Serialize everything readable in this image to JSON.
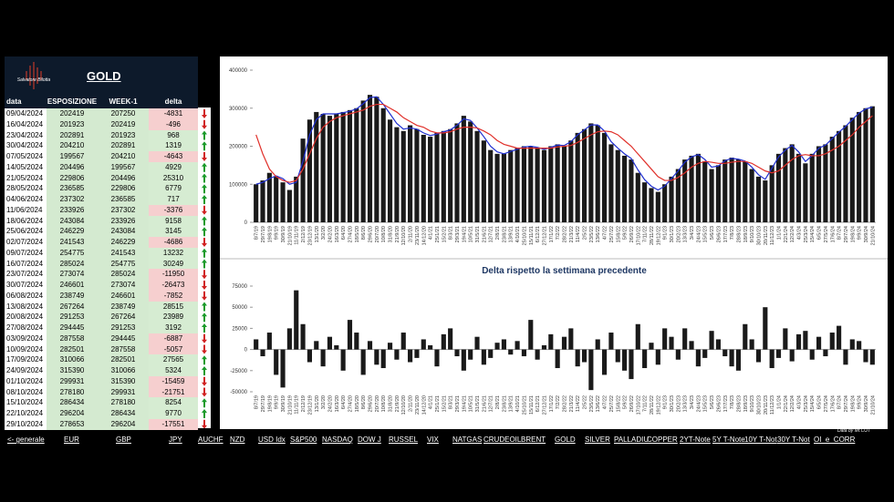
{
  "panel": {
    "logo": "Salvatore Bilotta",
    "title": "GOLD"
  },
  "table": {
    "header": [
      "data",
      "ESPOSIZIONE LS",
      "WEEK-1",
      "delta"
    ],
    "rows": [
      [
        "09/04/2024",
        202419,
        207250,
        -4831
      ],
      [
        "16/04/2024",
        201923,
        202419,
        -496
      ],
      [
        "23/04/2024",
        202891,
        201923,
        968
      ],
      [
        "30/04/2024",
        204210,
        202891,
        1319
      ],
      [
        "07/05/2024",
        199567,
        204210,
        -4643
      ],
      [
        "14/05/2024",
        204496,
        199567,
        4929
      ],
      [
        "21/05/2024",
        229806,
        204496,
        25310
      ],
      [
        "28/05/2024",
        236585,
        229806,
        6779
      ],
      [
        "04/06/2024",
        237302,
        236585,
        717
      ],
      [
        "11/06/2024",
        233926,
        237302,
        -3376
      ],
      [
        "18/06/2024",
        243084,
        233926,
        9158
      ],
      [
        "25/06/2024",
        246229,
        243084,
        3145
      ],
      [
        "02/07/2024",
        241543,
        246229,
        -4686
      ],
      [
        "09/07/2024",
        254775,
        241543,
        13232
      ],
      [
        "16/07/2024",
        285024,
        254775,
        30249
      ],
      [
        "23/07/2024",
        273074,
        285024,
        -11950
      ],
      [
        "30/07/2024",
        246601,
        273074,
        -26473
      ],
      [
        "06/08/2024",
        238749,
        246601,
        -7852
      ],
      [
        "13/08/2024",
        267264,
        238749,
        28515
      ],
      [
        "20/08/2024",
        291253,
        267264,
        23989
      ],
      [
        "27/08/2024",
        294445,
        291253,
        3192
      ],
      [
        "03/09/2024",
        287558,
        294445,
        -6887
      ],
      [
        "10/09/2024",
        282501,
        287558,
        -5057
      ],
      [
        "17/09/2024",
        310066,
        282501,
        27565
      ],
      [
        "24/09/2024",
        315390,
        310066,
        5324
      ],
      [
        "01/10/2024",
        299931,
        315390,
        -15459
      ],
      [
        "08/10/2024",
        278180,
        299931,
        -21751
      ],
      [
        "15/10/2024",
        286434,
        278180,
        8254
      ],
      [
        "22/10/2024",
        296204,
        286434,
        9770
      ],
      [
        "29/10/2024",
        278653,
        296204,
        -17551
      ]
    ]
  },
  "chart_data": [
    {
      "type": "bar",
      "ylim": [
        0,
        400000
      ],
      "yticks": [
        0,
        100000,
        200000,
        300000,
        400000
      ],
      "categories": [
        "8/7/19",
        "29/7/19",
        "19/8/19",
        "9/9/19",
        "30/9/19",
        "21/10/19",
        "11/11/19",
        "2/12/19",
        "23/12/19",
        "13/1/20",
        "3/2/20",
        "24/2/20",
        "16/3/20",
        "6/4/20",
        "27/4/20",
        "18/5/20",
        "8/6/20",
        "29/6/20",
        "20/7/20",
        "10/8/20",
        "31/8/20",
        "21/9/20",
        "12/10/20",
        "2/11/20",
        "23/11/20",
        "14/12/20",
        "4/1/21",
        "25/1/21",
        "15/2/21",
        "8/3/21",
        "29/3/21",
        "19/4/21",
        "10/5/21",
        "31/5/21",
        "21/6/21",
        "12/7/21",
        "2/8/21",
        "23/8/21",
        "13/9/21",
        "4/10/21",
        "25/10/21",
        "15/11/21",
        "6/12/21",
        "27/12/21",
        "17/1/22",
        "7/2/22",
        "28/2/22",
        "21/3/22",
        "11/4/22",
        "2/5/22",
        "23/5/22",
        "13/6/22",
        "4/7/22",
        "25/7/22",
        "15/8/22",
        "5/9/22",
        "26/9/22",
        "17/10/22",
        "7/11/22",
        "28/11/22",
        "19/12/22",
        "9/1/23",
        "30/1/23",
        "20/2/23",
        "13/3/23",
        "3/4/23",
        "24/4/23",
        "15/5/23",
        "5/6/23",
        "26/6/23",
        "17/7/23",
        "7/8/23",
        "28/8/23",
        "18/9/23",
        "9/10/23",
        "30/10/23",
        "20/11/23",
        "11/12/23",
        "1/1/24",
        "22/1/24",
        "12/2/24",
        "4/3/24",
        "25/3/24",
        "15/4/24",
        "6/5/24",
        "27/5/24",
        "17/6/24",
        "8/7/24",
        "29/7/24",
        "19/8/24",
        "9/9/24",
        "30/9/24",
        "21/10/24"
      ],
      "series": [
        {
          "type": "bar",
          "color": "#1a1a1a",
          "values": [
            100000,
            110000,
            130000,
            120000,
            105000,
            85000,
            120000,
            220000,
            270000,
            290000,
            285000,
            280000,
            285000,
            290000,
            295000,
            300000,
            320000,
            335000,
            330000,
            300000,
            270000,
            250000,
            240000,
            255000,
            245000,
            230000,
            225000,
            235000,
            240000,
            245000,
            260000,
            280000,
            265000,
            240000,
            215000,
            190000,
            180000,
            180000,
            190000,
            195000,
            200000,
            200000,
            195000,
            190000,
            200000,
            205000,
            200000,
            215000,
            235000,
            245000,
            260000,
            255000,
            235000,
            205000,
            190000,
            175000,
            165000,
            130000,
            105000,
            90000,
            80000,
            100000,
            120000,
            140000,
            165000,
            175000,
            180000,
            160000,
            140000,
            150000,
            165000,
            170000,
            165000,
            160000,
            140000,
            120000,
            110000,
            150000,
            180000,
            195000,
            205000,
            180000,
            155000,
            180000,
            200000,
            205000,
            225000,
            240000,
            255000,
            275000,
            290000,
            300000,
            305000
          ]
        },
        {
          "type": "line",
          "color": "#1f2fd0",
          "values": [
            100000,
            105000,
            115000,
            122000,
            115000,
            100000,
            105000,
            160000,
            230000,
            270000,
            285000,
            285000,
            285000,
            288000,
            292000,
            298000,
            312000,
            328000,
            330000,
            310000,
            285000,
            260000,
            245000,
            248000,
            245000,
            235000,
            228000,
            232000,
            238000,
            243000,
            255000,
            272000,
            268000,
            248000,
            225000,
            200000,
            185000,
            180000,
            186000,
            192000,
            198000,
            200000,
            197000,
            192000,
            197000,
            203000,
            202000,
            212000,
            230000,
            243000,
            256000,
            256000,
            240000,
            212000,
            195000,
            180000,
            168000,
            138000,
            112000,
            95000,
            85000,
            95000,
            115000,
            135000,
            158000,
            172000,
            178000,
            165000,
            145000,
            148000,
            162000,
            168000,
            166000,
            161000,
            145000,
            125000,
            113000,
            142000,
            172000,
            190000,
            202000,
            185000,
            160000,
            175000,
            195000,
            203000,
            220000,
            237000,
            252000,
            270000,
            287000,
            298000,
            303000
          ]
        },
        {
          "type": "line",
          "color": "#e0302a",
          "values": [
            230000,
            180000,
            140000,
            120000,
            110000,
            105000,
            110000,
            140000,
            180000,
            220000,
            250000,
            265000,
            275000,
            280000,
            285000,
            290000,
            295000,
            305000,
            310000,
            310000,
            300000,
            290000,
            275000,
            265000,
            255000,
            250000,
            240000,
            235000,
            235000,
            238000,
            245000,
            250000,
            250000,
            248000,
            240000,
            230000,
            215000,
            205000,
            200000,
            195000,
            195000,
            195000,
            195000,
            195000,
            195000,
            198000,
            200000,
            202000,
            210000,
            220000,
            230000,
            238000,
            240000,
            238000,
            230000,
            215000,
            200000,
            180000,
            160000,
            140000,
            120000,
            110000,
            110000,
            118000,
            130000,
            145000,
            155000,
            160000,
            158000,
            155000,
            155000,
            158000,
            160000,
            160000,
            155000,
            145000,
            135000,
            130000,
            135000,
            150000,
            165000,
            175000,
            178000,
            175000,
            175000,
            180000,
            190000,
            200000,
            215000,
            230000,
            250000,
            265000,
            280000
          ]
        }
      ]
    },
    {
      "type": "bar",
      "title": "Delta rispetto la settimana precedente",
      "ylim": [
        -50000,
        75000
      ],
      "yticks": [
        -50000,
        -25000,
        0,
        25000,
        50000,
        75000
      ],
      "categories": [
        "8/7/19",
        "29/7/19",
        "19/8/19",
        "9/9/19",
        "30/9/19",
        "21/10/19",
        "11/11/19",
        "2/12/19",
        "23/12/19",
        "13/1/20",
        "3/2/20",
        "24/2/20",
        "16/3/20",
        "6/4/20",
        "27/4/20",
        "18/5/20",
        "8/6/20",
        "29/6/20",
        "20/7/20",
        "10/8/20",
        "31/8/20",
        "21/9/20",
        "12/10/20",
        "2/11/20",
        "23/11/20",
        "14/12/20",
        "4/1/21",
        "25/1/21",
        "15/2/21",
        "8/3/21",
        "29/3/21",
        "19/4/21",
        "10/5/21",
        "31/5/21",
        "21/6/21",
        "12/7/21",
        "2/8/21",
        "23/8/21",
        "13/9/21",
        "4/10/21",
        "25/10/21",
        "15/11/21",
        "6/12/21",
        "27/12/21",
        "17/1/22",
        "7/2/22",
        "28/2/22",
        "21/3/22",
        "11/4/22",
        "2/5/22",
        "23/5/22",
        "13/6/22",
        "4/7/22",
        "25/7/22",
        "15/8/22",
        "5/9/22",
        "26/9/22",
        "17/10/22",
        "7/11/22",
        "28/11/22",
        "19/12/22",
        "9/1/23",
        "30/1/23",
        "20/2/23",
        "13/3/23",
        "3/4/23",
        "24/4/23",
        "15/5/23",
        "5/6/23",
        "26/6/23",
        "17/7/23",
        "7/8/23",
        "28/8/23",
        "18/9/23",
        "9/10/23",
        "30/10/23",
        "20/11/23",
        "11/12/23",
        "1/1/24",
        "22/1/24",
        "12/2/24",
        "4/3/24",
        "25/3/24",
        "15/4/24",
        "6/5/24",
        "27/5/24",
        "17/6/24",
        "8/7/24",
        "29/7/24",
        "19/8/24",
        "9/9/24",
        "30/9/24",
        "21/10/24"
      ],
      "series": [
        {
          "type": "bar",
          "color": "#1a1a1a",
          "values": [
            12000,
            -8000,
            20000,
            -30000,
            -45000,
            25000,
            70000,
            30000,
            -15000,
            10000,
            -20000,
            15000,
            5000,
            -25000,
            35000,
            20000,
            -30000,
            10000,
            -18000,
            -22000,
            8000,
            -12000,
            20000,
            -15000,
            -10000,
            12000,
            5000,
            -20000,
            18000,
            25000,
            -8000,
            -25000,
            -12000,
            15000,
            -18000,
            -10000,
            8000,
            12000,
            -6000,
            10000,
            -8000,
            35000,
            -12000,
            5000,
            18000,
            -22000,
            15000,
            25000,
            -20000,
            -15000,
            -48000,
            12000,
            -30000,
            20000,
            -15000,
            -25000,
            -35000,
            30000,
            -22000,
            8000,
            -18000,
            25000,
            15000,
            -12000,
            25000,
            10000,
            -20000,
            -10000,
            22000,
            12000,
            -8000,
            -20000,
            -25000,
            30000,
            12000,
            -15000,
            50000,
            -22000,
            -10000,
            25000,
            -14000,
            18000,
            22000,
            -12000,
            15000,
            -8000,
            20000,
            28000,
            -18000,
            12000,
            10000,
            -15000,
            -18000
          ]
        }
      ]
    }
  ],
  "credit": "Data by Mr.COT",
  "nav": {
    "links": [
      "<- generale",
      "EUR",
      "GBP",
      "JPY",
      "AUCHF",
      "NZD",
      "USD Idx",
      "S&P500",
      "NASDAQ",
      "DOW J",
      "RUSSEL",
      "VIX",
      "NATGAS",
      "CRUDEOIL",
      "BRENT",
      "GOLD",
      "SILVER",
      "PALLADIU",
      "COPPER",
      "2YT-Note",
      "5Y T-Note",
      "10Y T-Not",
      "30Y T-Not",
      "OI_e_CORR"
    ]
  }
}
